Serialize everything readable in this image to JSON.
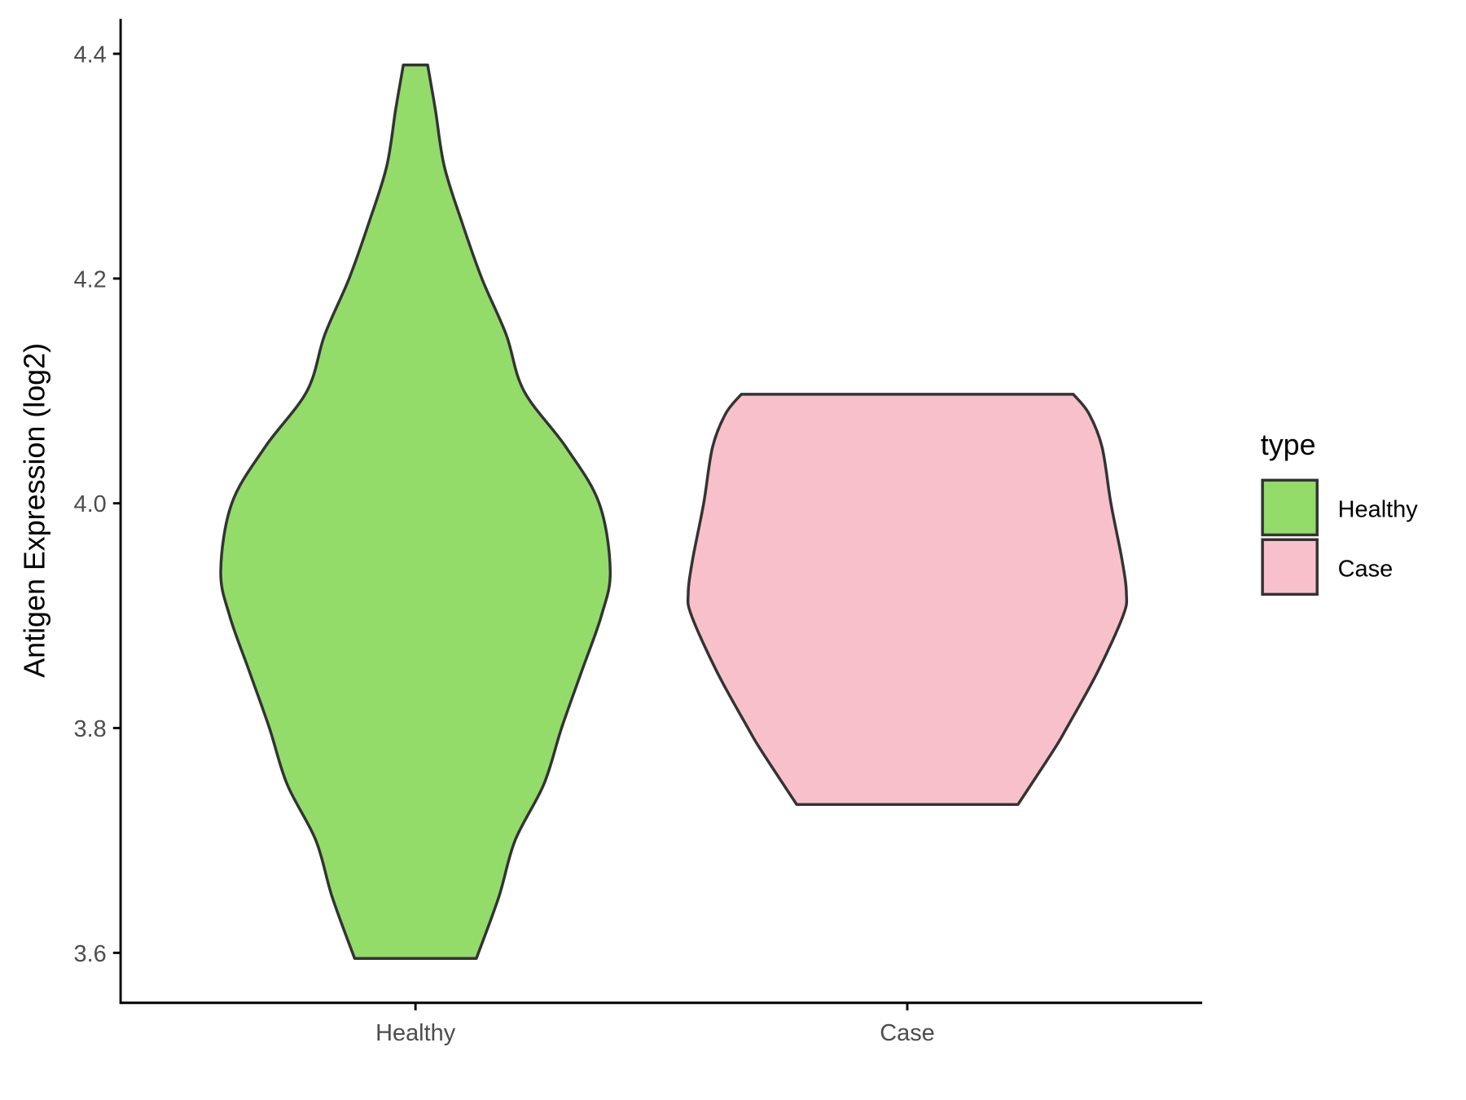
{
  "chart_data": {
    "type": "violin",
    "title": "",
    "xlabel": "",
    "ylabel": "Antigen Expression (log2)",
    "ylim": [
      3.555,
      4.455
    ],
    "yticks": [
      "3.6",
      "3.8",
      "4.0",
      "4.2",
      "4.4"
    ],
    "categories": [
      "Healthy",
      "Case"
    ],
    "grid": false,
    "legend": {
      "title": "type",
      "placement": "right",
      "entries": [
        "Healthy",
        "Case"
      ]
    },
    "series": [
      {
        "name": "Healthy",
        "color": "#93DC6A",
        "min": 3.595,
        "max": 4.39,
        "density_profile": [
          [
            3.595,
            0.275
          ],
          [
            3.65,
            0.377
          ],
          [
            3.7,
            0.45
          ],
          [
            3.75,
            0.58
          ],
          [
            3.8,
            0.66
          ],
          [
            3.85,
            0.75
          ],
          [
            3.9,
            0.84
          ],
          [
            3.94,
            0.88
          ],
          [
            4.0,
            0.83
          ],
          [
            4.05,
            0.68
          ],
          [
            4.1,
            0.49
          ],
          [
            4.15,
            0.41
          ],
          [
            4.2,
            0.3
          ],
          [
            4.25,
            0.21
          ],
          [
            4.3,
            0.13
          ],
          [
            4.35,
            0.09
          ],
          [
            4.39,
            0.055
          ]
        ]
      },
      {
        "name": "Case",
        "color": "#F8C0CB",
        "min": 3.732,
        "max": 4.097,
        "density_profile": [
          [
            3.732,
            0.5
          ],
          [
            3.78,
            0.66
          ],
          [
            3.8,
            0.72
          ],
          [
            3.85,
            0.86
          ],
          [
            3.9,
            0.975
          ],
          [
            3.92,
            0.99
          ],
          [
            3.95,
            0.97
          ],
          [
            4.0,
            0.92
          ],
          [
            4.05,
            0.88
          ],
          [
            4.08,
            0.82
          ],
          [
            4.097,
            0.75
          ]
        ]
      }
    ],
    "outline_color": "#333333"
  }
}
